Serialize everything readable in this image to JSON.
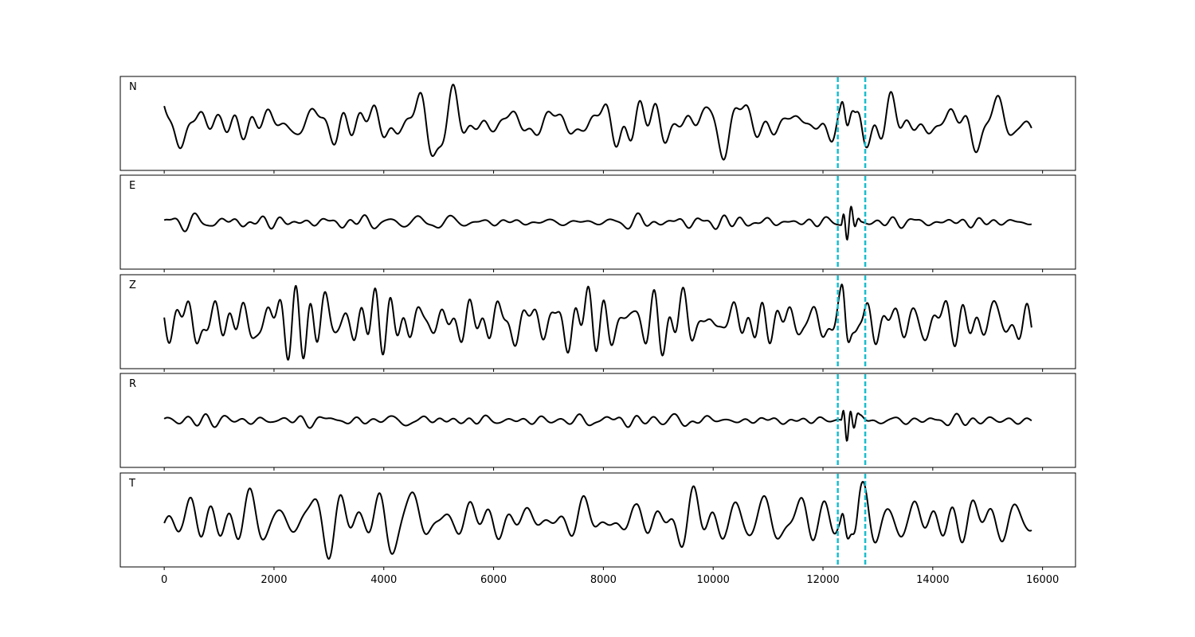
{
  "chart_data": {
    "type": "line",
    "layout": "stacked-panels",
    "shared_x_axis": true,
    "xlim": [
      -800,
      16600
    ],
    "x_ticks": [
      0,
      2000,
      4000,
      6000,
      8000,
      10000,
      12000,
      14000,
      16000
    ],
    "x_tick_labels": [
      "0",
      "2000",
      "4000",
      "6000",
      "8000",
      "10000",
      "12000",
      "14000",
      "16000"
    ],
    "x_range": [
      0,
      15800
    ],
    "grid": false,
    "legend": "none",
    "line_color": "#000000",
    "marker_color": "#17becf",
    "markers": [
      {
        "x": 12270,
        "style": "dashed"
      },
      {
        "x": 12770,
        "style": "dashed"
      }
    ],
    "panels": [
      {
        "label": "N",
        "ylim": [
          -1,
          1
        ],
        "noise_amplitude": 0.45,
        "peak_amplitude": 0.92,
        "burst": {
          "x_start": 12300,
          "x_end": 12750,
          "amplitude": 0.4
        },
        "seed": 11
      },
      {
        "label": "E",
        "ylim": [
          -1,
          1
        ],
        "noise_amplitude": 0.09,
        "peak_amplitude": 0.22,
        "burst": {
          "x_start": 12330,
          "x_end": 12700,
          "amplitude": 0.95
        },
        "seed": 23
      },
      {
        "label": "Z",
        "ylim": [
          -1,
          1
        ],
        "noise_amplitude": 0.45,
        "peak_amplitude": 0.9,
        "burst": {
          "x_start": 12300,
          "x_end": 12750,
          "amplitude": 0.45
        },
        "seed": 37
      },
      {
        "label": "R",
        "ylim": [
          -1,
          1
        ],
        "noise_amplitude": 0.08,
        "peak_amplitude": 0.18,
        "burst": {
          "x_start": 12330,
          "x_end": 12680,
          "amplitude": 0.95
        },
        "seed": 41
      },
      {
        "label": "T",
        "ylim": [
          -1,
          1
        ],
        "noise_amplitude": 0.45,
        "peak_amplitude": 0.92,
        "burst": {
          "x_start": 12300,
          "x_end": 12750,
          "amplitude": 0.45
        },
        "seed": 53
      }
    ]
  }
}
